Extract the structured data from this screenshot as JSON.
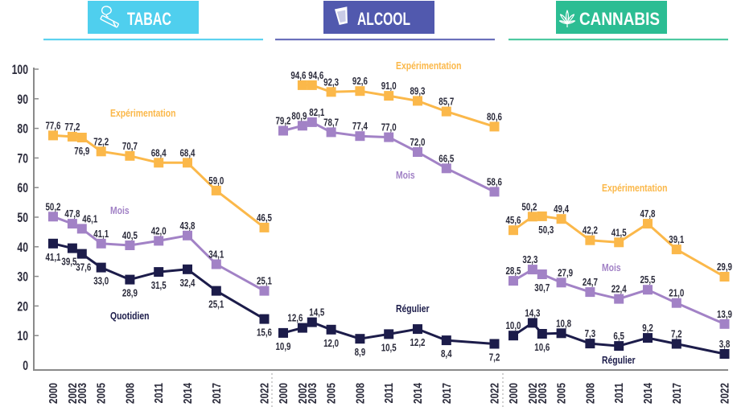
{
  "headers": [
    {
      "title": "TABAC",
      "icon": "cigarette-icon",
      "box_color": "#4fcfee",
      "underline_color": "#5dd2ef"
    },
    {
      "title": "ALCOOL",
      "icon": "glass-icon",
      "box_color": "#5159ae",
      "underline_color": "#6a70bb"
    },
    {
      "title": "CANNABIS",
      "icon": "cannabis-leaf-icon",
      "box_color": "#2cbd93",
      "underline_color": "#4ec9a1"
    }
  ],
  "colors": {
    "text": "#2b2b3b",
    "axis": "#8a8a8a",
    "separator": "#b0b0b0"
  },
  "chart_data": [
    {
      "type": "line",
      "title": "TABAC",
      "xlabel": "",
      "ylabel": "",
      "x": [
        2000,
        2002,
        2003,
        2005,
        2008,
        2011,
        2014,
        2017,
        2022
      ],
      "x_tick_labels": [
        "2000",
        "2002",
        "2003",
        "2005",
        "2008",
        "2011",
        "2014",
        "2017",
        "2022"
      ],
      "ylim": [
        0,
        100
      ],
      "y_ticks": [
        0,
        10,
        20,
        30,
        40,
        50,
        60,
        70,
        80,
        90,
        100
      ],
      "y_tick_labels": [
        "0",
        "10",
        "20",
        "30",
        "40",
        "50",
        "60",
        "70",
        "80",
        "90",
        "100"
      ],
      "grid": false,
      "legend": "inline",
      "series": [
        {
          "name": "Expérimentation",
          "color": "#fbb84a",
          "values": [
            77.6,
            77.2,
            76.9,
            72.2,
            70.7,
            68.4,
            68.4,
            59.0,
            46.5
          ],
          "labels": [
            "77,6",
            "77,2",
            "76,9",
            "72,2",
            "70,7",
            "68,4",
            "68,4",
            "59,0",
            "46,5"
          ]
        },
        {
          "name": "Mois",
          "color": "#a282c6",
          "values": [
            50.2,
            47.8,
            46.1,
            41.1,
            40.5,
            42.0,
            43.8,
            34.1,
            25.1
          ],
          "labels": [
            "50,2",
            "47,8",
            "46,1",
            "41,1",
            "40,5",
            "42,0",
            "43,8",
            "34,1",
            "25,1"
          ]
        },
        {
          "name": "Quotidien",
          "color": "#1c1c4a",
          "values": [
            41.1,
            39.5,
            37.6,
            33.0,
            28.9,
            31.5,
            32.4,
            25.1,
            15.6
          ],
          "labels": [
            "41,1",
            "39,5",
            "37,6",
            "33,0",
            "28,9",
            "31,5",
            "32,4",
            "25,1",
            "15,6"
          ]
        }
      ]
    },
    {
      "type": "line",
      "title": "ALCOOL",
      "xlabel": "",
      "ylabel": "",
      "x": [
        2000,
        2002,
        2003,
        2005,
        2008,
        2011,
        2014,
        2017,
        2022
      ],
      "x_tick_labels": [
        "2000",
        "2002",
        "2003",
        "2005",
        "2008",
        "2011",
        "2014",
        "2017",
        "2022"
      ],
      "ylim": [
        0,
        100
      ],
      "grid": false,
      "legend": "inline",
      "series": [
        {
          "name": "Expérimentation",
          "color": "#fbb84a",
          "values": [
            null,
            94.6,
            94.6,
            92.3,
            92.6,
            91.0,
            89.3,
            85.7,
            80.6
          ],
          "labels": [
            null,
            "94,6",
            "94,6",
            "92,3",
            "92,6",
            "91,0",
            "89,3",
            "85,7",
            "80,6"
          ]
        },
        {
          "name": "Mois",
          "color": "#a282c6",
          "values": [
            79.2,
            80.9,
            82.1,
            78.7,
            77.4,
            77.0,
            72.0,
            66.5,
            58.6
          ],
          "labels": [
            "79,2",
            "80,9",
            "82,1",
            "78,7",
            "77,4",
            "77,0",
            "72,0",
            "66,5",
            "58,6"
          ]
        },
        {
          "name": "Régulier",
          "color": "#1c1c4a",
          "values": [
            10.9,
            12.6,
            14.5,
            12.0,
            8.9,
            10.5,
            12.2,
            8.4,
            7.2
          ],
          "labels": [
            "10,9",
            "12,6",
            "14,5",
            "12,0",
            "8,9",
            "10,5",
            "12,2",
            "8,4",
            "7,2"
          ]
        }
      ]
    },
    {
      "type": "line",
      "title": "CANNABIS",
      "xlabel": "",
      "ylabel": "",
      "x": [
        2000,
        2002,
        2003,
        2005,
        2008,
        2011,
        2014,
        2017,
        2022
      ],
      "x_tick_labels": [
        "2000",
        "2002",
        "2003",
        "2005",
        "2008",
        "2011",
        "2014",
        "2017",
        "2022"
      ],
      "ylim": [
        0,
        100
      ],
      "grid": false,
      "legend": "inline",
      "series": [
        {
          "name": "Expérimentation",
          "color": "#fbb84a",
          "values": [
            45.6,
            50.2,
            50.3,
            49.4,
            42.2,
            41.5,
            47.8,
            39.1,
            29.9
          ],
          "labels": [
            "45,6",
            "50,2",
            "50,3",
            "49,4",
            "42,2",
            "41,5",
            "47,8",
            "39,1",
            "29,9"
          ]
        },
        {
          "name": "Mois",
          "color": "#a282c6",
          "values": [
            28.5,
            32.3,
            30.7,
            27.9,
            24.7,
            22.4,
            25.5,
            21.0,
            13.9
          ],
          "labels": [
            "28,5",
            "32,3",
            "30,7",
            "27,9",
            "24,7",
            "22,4",
            "25,5",
            "21,0",
            "13,9"
          ]
        },
        {
          "name": "Régulier",
          "color": "#1c1c4a",
          "values": [
            10.0,
            14.3,
            10.6,
            10.8,
            7.3,
            6.5,
            9.2,
            7.2,
            3.8
          ],
          "labels": [
            "10,0",
            "14,3",
            "10,6",
            "10,8",
            "7,3",
            "6,5",
            "9,2",
            "7,2",
            "3,8"
          ]
        }
      ]
    }
  ]
}
